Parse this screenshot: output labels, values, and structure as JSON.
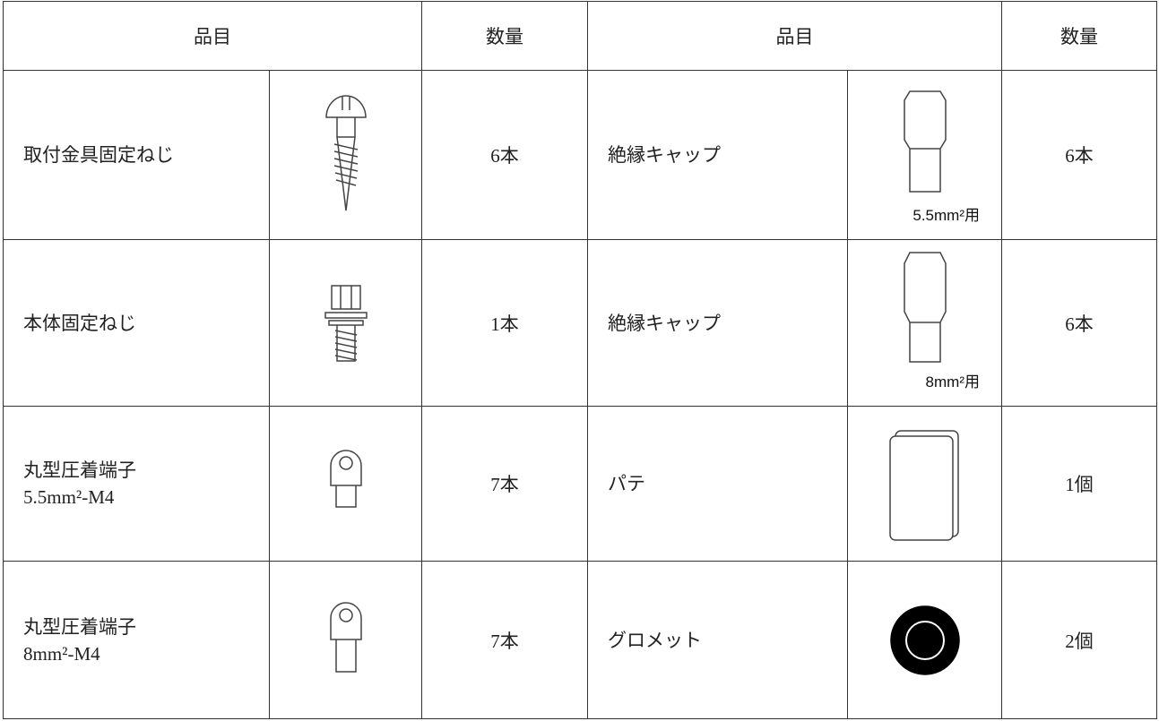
{
  "header": {
    "cells": [
      "品目",
      "数量",
      "品目",
      "数量"
    ]
  },
  "rows": [
    {
      "left": {
        "name": [
          "取付金具固定ねじ"
        ],
        "qty": "6本"
      },
      "right": {
        "name": "絶縁キャップ",
        "icon_label": "5.5mm²用",
        "qty": "6本"
      }
    },
    {
      "left": {
        "name": [
          "本体固定ねじ"
        ],
        "qty": "1本"
      },
      "right": {
        "name": "絶縁キャップ",
        "icon_label": "8mm²用",
        "qty": "6本"
      }
    },
    {
      "left": {
        "name": [
          "丸型圧着端子",
          "5.5mm²-M4"
        ],
        "qty": "7本"
      },
      "right": {
        "name": "パテ",
        "qty": "1個"
      }
    },
    {
      "left": {
        "name": [
          "丸型圧着端子",
          "8mm²-M4"
        ],
        "qty": "7本"
      },
      "right": {
        "name": "グロメット",
        "qty": "2個"
      }
    }
  ]
}
